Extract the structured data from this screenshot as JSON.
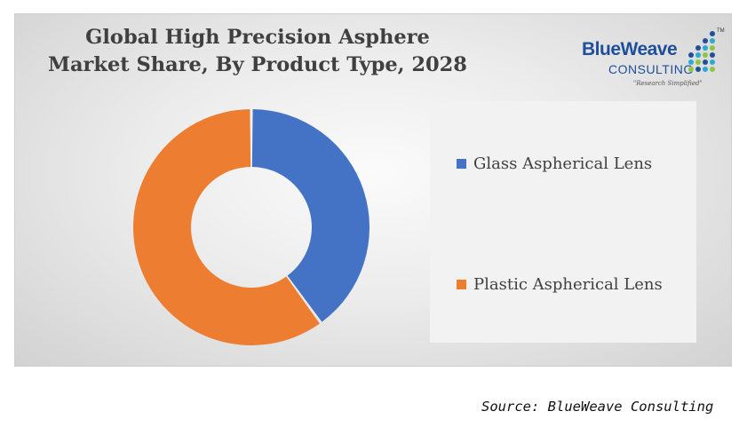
{
  "chart_data": {
    "type": "pie",
    "title_lines": [
      "Global High Precision Asphere",
      "Market Share, By Product Type, 2028"
    ],
    "categories": [
      "Glass Aspherical Lens",
      "Plastic Aspherical Lens"
    ],
    "values": [
      40,
      60
    ],
    "colors": [
      "#4472c4",
      "#ed7d31"
    ],
    "legend_position": "right"
  },
  "logo": {
    "main": "BlueWeave",
    "sub": "CONSULTING",
    "tagline": "\"Research Simplified\"",
    "tm": "TM",
    "colors": [
      "#1f4f9a",
      "#2aa8d8",
      "#8dc63f"
    ]
  },
  "source": "Source: BlueWeave Consulting"
}
